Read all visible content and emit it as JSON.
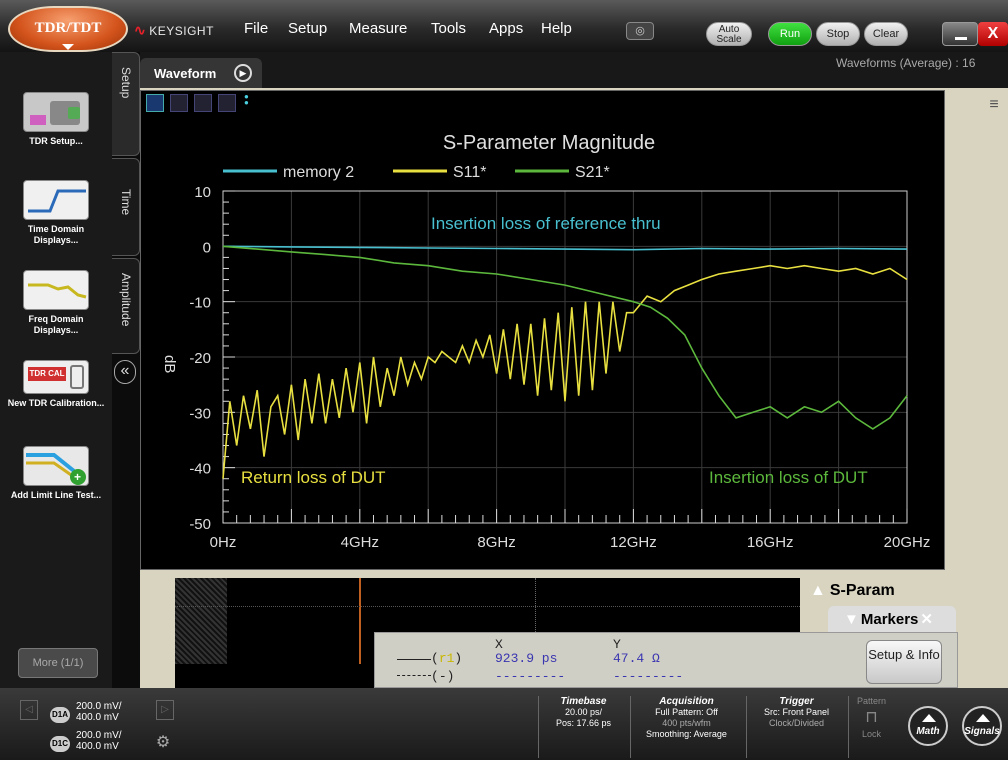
{
  "app": {
    "mode_button": "TDR/TDT",
    "brand": "KEYSIGHT"
  },
  "menu": [
    "File",
    "Setup",
    "Measure",
    "Tools",
    "Apps",
    "Help"
  ],
  "controls": {
    "autoscale": "Auto Scale",
    "run": "Run",
    "stop": "Stop",
    "clear": "Clear",
    "close": "X"
  },
  "sidebar": {
    "tools": [
      {
        "label": "TDR Setup...",
        "icon": "tdr-setup-icon"
      },
      {
        "label": "Time Domain Displays...",
        "icon": "time-domain-icon"
      },
      {
        "label": "Freq Domain Displays...",
        "icon": "freq-domain-icon"
      },
      {
        "label": "New TDR Calibration...",
        "icon": "tdr-cal-icon"
      },
      {
        "label": "Add Limit Line Test...",
        "icon": "limit-line-icon"
      }
    ],
    "more": "More (1/1)",
    "tabs": [
      "Setup",
      "Time",
      "Amplitude"
    ]
  },
  "waveform_tab": {
    "label": "Waveform",
    "info": "Waveforms (Average) : 16"
  },
  "chart_data": {
    "type": "line",
    "title": "S-Parameter Magnitude",
    "xlabel": "",
    "ylabel": "dB",
    "xlim": [
      0,
      20
    ],
    "ylim": [
      -50,
      10
    ],
    "x_ticks": [
      "0Hz",
      "4GHz",
      "8GHz",
      "12GHz",
      "16GHz",
      "20GHz"
    ],
    "y_ticks": [
      "10",
      "0",
      "-10",
      "-20",
      "-30",
      "-40",
      "-50"
    ],
    "grid": true,
    "legend_position": "top",
    "annotations": [
      "Insertion loss of reference thru",
      "Return loss of DUT",
      "Insertion loss of DUT"
    ],
    "series": [
      {
        "name": "memory 2",
        "color": "#48c0d0",
        "x": [
          0,
          2,
          4,
          6,
          8,
          10,
          12,
          14,
          16,
          18,
          20
        ],
        "y": [
          0,
          -0.1,
          -0.2,
          -0.3,
          -0.4,
          -0.5,
          -0.6,
          -0.4,
          -0.5,
          -0.4,
          -0.5
        ]
      },
      {
        "name": "S11*",
        "color": "#e8e040",
        "x": [
          0,
          0.2,
          0.4,
          0.6,
          0.8,
          1.0,
          1.2,
          1.4,
          1.6,
          1.8,
          2.0,
          2.2,
          2.4,
          2.6,
          2.8,
          3.0,
          3.2,
          3.4,
          3.6,
          3.8,
          4.0,
          4.2,
          4.4,
          4.6,
          4.8,
          5.0,
          5.2,
          5.4,
          5.6,
          5.8,
          6.0,
          6.2,
          6.4,
          6.6,
          6.8,
          7.0,
          7.2,
          7.4,
          7.6,
          7.8,
          8.0,
          8.2,
          8.4,
          8.6,
          8.8,
          9.0,
          9.2,
          9.4,
          9.6,
          9.8,
          10.0,
          10.2,
          10.4,
          10.6,
          10.8,
          11.0,
          11.2,
          11.4,
          11.6,
          11.8,
          12.0,
          12.4,
          12.8,
          13.2,
          13.6,
          14.0,
          14.5,
          15.0,
          15.5,
          16.0,
          16.5,
          17.0,
          17.5,
          18.0,
          18.5,
          19.0,
          19.5,
          20.0
        ],
        "y": [
          -42,
          -28,
          -36,
          -27,
          -33,
          -26,
          -38,
          -29,
          -27,
          -34,
          -25,
          -35,
          -24,
          -32,
          -23,
          -32,
          -24,
          -31,
          -22,
          -30,
          -21,
          -32,
          -20,
          -29,
          -22,
          -27,
          -20,
          -25,
          -21,
          -24,
          -20,
          -21,
          -19,
          -20,
          -21,
          -18,
          -21,
          -17,
          -20,
          -16,
          -23,
          -15,
          -24,
          -14,
          -25,
          -14,
          -27,
          -13,
          -26,
          -12,
          -28,
          -11,
          -27,
          -10,
          -26,
          -10,
          -23,
          -10,
          -19,
          -12,
          -12,
          -9,
          -10,
          -8,
          -7,
          -6,
          -5,
          -4.5,
          -4,
          -3.5,
          -4,
          -3.5,
          -4,
          -4.5,
          -4,
          -5,
          -4,
          -6
        ]
      },
      {
        "name": "S21*",
        "color": "#5cb83c",
        "x": [
          0,
          1,
          2,
          3,
          4,
          5,
          6,
          7,
          8,
          9,
          10,
          11,
          12,
          12.5,
          13,
          13.5,
          14,
          14.5,
          15,
          15.5,
          16,
          16.5,
          17,
          17.5,
          18,
          18.5,
          19,
          19.5,
          20
        ],
        "y": [
          0,
          -0.5,
          -1,
          -1.5,
          -2,
          -3,
          -3.5,
          -4.5,
          -5,
          -6,
          -7,
          -8.5,
          -10,
          -11,
          -13,
          -16,
          -22,
          -27,
          -31,
          -30,
          -29,
          -31,
          -29,
          -30,
          -28,
          -31,
          -33,
          -31,
          -27
        ]
      }
    ]
  },
  "markers": {
    "sparam_label": "S-Param",
    "tab_label": "Markers",
    "x_header": "X",
    "y_header": "Y",
    "marker1_id": "r1",
    "marker1_x": "923.9 ps",
    "marker1_y": "47.4 Ω",
    "marker2_id": "-",
    "marker2_x": "---------",
    "marker2_y": "---------",
    "setup_button": "Setup & Info"
  },
  "channels": [
    {
      "id": "D1A",
      "line1": "200.0 mV/",
      "line2": "400.0 mV"
    },
    {
      "id": "D1C",
      "line1": "200.0 mV/",
      "line2": "400.0 mV"
    }
  ],
  "status": {
    "timebase_title": "Timebase",
    "timebase_1": "20.00 ps/",
    "timebase_2": "Pos: 17.66 ps",
    "acq_title": "Acquisition",
    "acq_1": "Full Pattern: Off",
    "acq_2": "400 pts/wfm",
    "acq_3": "Smoothing: Average",
    "trig_title": "Trigger",
    "trig_1": "Src: Front Panel",
    "trig_2": "Clock/Divided",
    "pattern_title": "Pattern",
    "pattern_lock": "Lock",
    "math": "Math",
    "signals": "Signals"
  },
  "colors": {
    "accent": "#d4541c",
    "run": "#22c022",
    "trace_blue": "#48c0d0",
    "trace_yellow": "#e8e040",
    "trace_green": "#5cb83c"
  }
}
